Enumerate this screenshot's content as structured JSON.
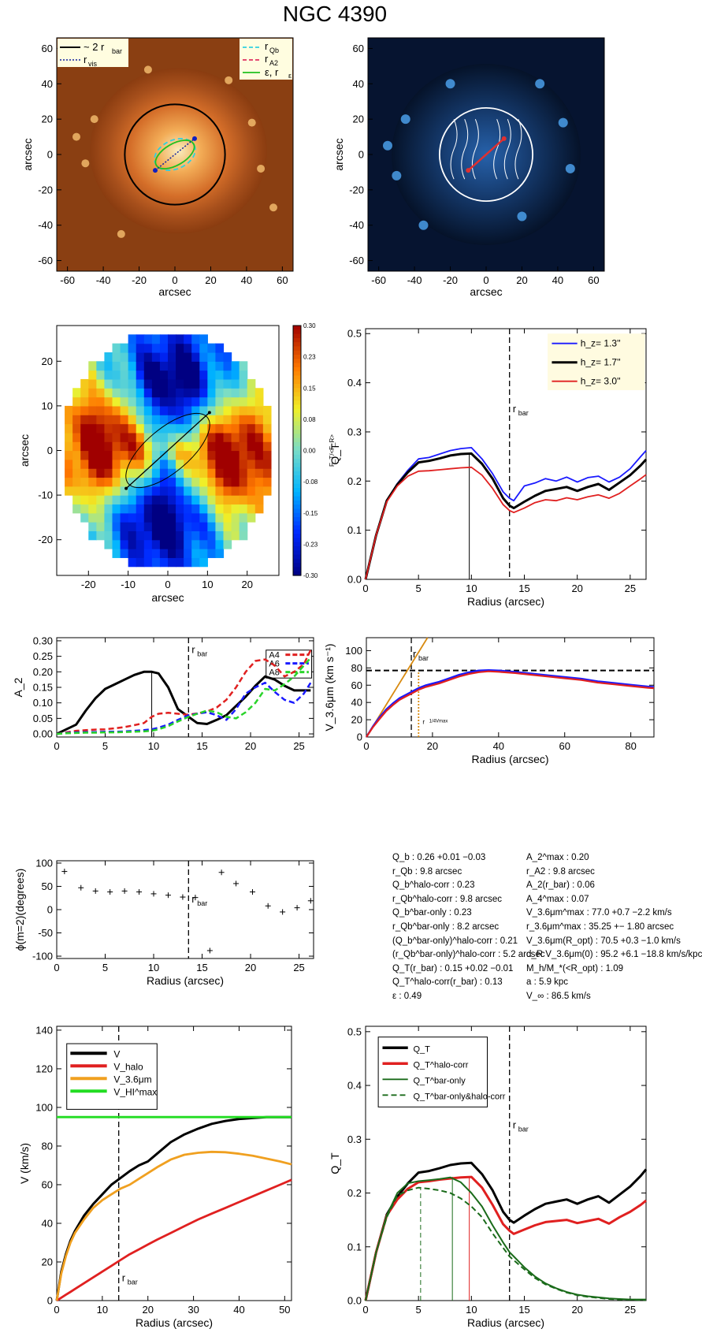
{
  "title": "NGC 4390",
  "images": {
    "optical": {
      "ticks": [
        "-60",
        "-40",
        "-20",
        "0",
        "20",
        "40",
        "60"
      ],
      "xlabel": "arcsec",
      "ylabel": "arcsec",
      "legend_left": [
        "~ 2 r",
        "bar",
        "r",
        "vis"
      ],
      "legend_right": [
        "r",
        "Qb",
        "r",
        "A2",
        "ε, r",
        "ε"
      ]
    },
    "residual": {
      "ticks": [
        "-60",
        "-40",
        "-20",
        "0",
        "20",
        "40",
        "60"
      ],
      "xlabel": "arcsec",
      "ylabel": "arcsec"
    }
  },
  "torque_map": {
    "ticks": [
      "-20",
      "-10",
      "0",
      "10",
      "20"
    ],
    "xlabel": "arcsec",
    "ylabel": "arcsec",
    "colorbar_ticks": [
      "0.30",
      "0.23",
      "0.15",
      "0.08",
      "0.00",
      "-0.08",
      "-0.15",
      "-0.23",
      "-0.30"
    ],
    "colorbar_label": "F_T/<F_R>"
  },
  "info_left": [
    "Q_b :  0.26 +0.01 −0.03",
    "r_Qb :   9.8  arcsec",
    "Q_b^halo-corr :  0.23",
    "r_Qb^halo-corr :  9.8 arcsec",
    "Q_b^bar-only :  0.23",
    "r_Qb^bar-only :  8.2 arcsec",
    "(Q_b^bar-only)^halo-corr :  0.21",
    "(r_Qb^bar-only)^halo-corr :  5.2 arcsec",
    "Q_T(r_bar) :  0.15 +0.02 −0.01",
    "Q_T^halo-corr(r_bar) :  0.13",
    "ε :  0.49"
  ],
  "info_right": [
    "A_2^max :  0.20",
    "r_A2 :   9.8 arcsec",
    "A_2(r_bar) :  0.06",
    "A_4^max :  0.07",
    "V_3.6μm^max :  77.0 +0.7 −2.2 km/s",
    "r_3.6μm^max :  35.25 +− 1.80 arcsec",
    "V_3.6μm(R_opt) :  70.5 +0.3 −1.0 km/s",
    "d_R V_3.6μm(0) :  95.2 +6.1 −18.8 km/s/kpc",
    "M_h/M_*(<R_opt) :  1.09",
    "a :   5.9 kpc",
    "V_∞ :  86.5 km/s"
  ],
  "chart_data": [
    {
      "id": "qt-hz",
      "type": "line",
      "xlabel": "Radius (arcsec)",
      "ylabel": "Q_T",
      "xlim": [
        0,
        26.5
      ],
      "ylim": [
        0,
        0.51
      ],
      "xticks": [
        0,
        5,
        10,
        15,
        20,
        25
      ],
      "yticks": [
        0,
        0.1,
        0.2,
        0.3,
        0.4,
        0.5
      ],
      "rbar": 13.6,
      "rqb": 9.8,
      "x": [
        0,
        1,
        2,
        3,
        4,
        5,
        6,
        7,
        8,
        9,
        10,
        11,
        12,
        13,
        13.6,
        14,
        15,
        16,
        17,
        18,
        19,
        20,
        21,
        22,
        23,
        24,
        25,
        26,
        26.5
      ],
      "series": [
        {
          "name": "h_z=  1.3''",
          "color": "#1a1aff",
          "values": [
            0,
            0.09,
            0.16,
            0.195,
            0.222,
            0.245,
            0.248,
            0.255,
            0.262,
            0.266,
            0.268,
            0.245,
            0.215,
            0.178,
            0.165,
            0.16,
            0.19,
            0.196,
            0.205,
            0.2,
            0.208,
            0.198,
            0.207,
            0.21,
            0.198,
            0.208,
            0.225,
            0.25,
            0.262
          ]
        },
        {
          "name": "h_z=  1.7''",
          "color": "#000000",
          "values": [
            0,
            0.09,
            0.16,
            0.193,
            0.218,
            0.238,
            0.241,
            0.246,
            0.252,
            0.255,
            0.256,
            0.235,
            0.205,
            0.165,
            0.15,
            0.145,
            0.158,
            0.17,
            0.18,
            0.184,
            0.188,
            0.18,
            0.188,
            0.194,
            0.182,
            0.197,
            0.212,
            0.232,
            0.244
          ]
        },
        {
          "name": "h_z=  3.0''",
          "color": "#e02020",
          "values": [
            0,
            0.09,
            0.158,
            0.19,
            0.21,
            0.22,
            0.221,
            0.223,
            0.225,
            0.227,
            0.228,
            0.212,
            0.185,
            0.152,
            0.14,
            0.136,
            0.145,
            0.156,
            0.162,
            0.16,
            0.166,
            0.162,
            0.168,
            0.172,
            0.165,
            0.175,
            0.19,
            0.205,
            0.213
          ]
        }
      ],
      "labels": {
        "rbar": "r_bar"
      }
    },
    {
      "id": "a2",
      "type": "line",
      "xlabel": "",
      "ylabel": "A_2",
      "xlim": [
        0,
        26.5
      ],
      "ylim": [
        -0.01,
        0.31
      ],
      "xticks": [
        0,
        5,
        10,
        15,
        20,
        25
      ],
      "yticks": [
        0,
        0.05,
        0.1,
        0.15,
        0.2,
        0.25,
        0.3
      ],
      "ytick_labels": [
        "0.00",
        "0.05",
        "0.10",
        "0.15",
        "0.20",
        "0.25",
        "0.30"
      ],
      "rbar": 13.6,
      "ra2": 9.8,
      "x": [
        0,
        1,
        2,
        3,
        4,
        5,
        6,
        7,
        8,
        9,
        9.8,
        10.5,
        11.5,
        12.5,
        13.6,
        14.5,
        15.5,
        16.5,
        17.5,
        18.5,
        19.5,
        20.5,
        21.5,
        22.5,
        23.5,
        24.5,
        25.5,
        26.2
      ],
      "series": [
        {
          "name": "A_2",
          "color": "#000000",
          "dash": "",
          "values": [
            0,
            0.015,
            0.03,
            0.075,
            0.115,
            0.145,
            0.16,
            0.175,
            0.19,
            0.2,
            0.2,
            0.195,
            0.15,
            0.08,
            0.055,
            0.035,
            0.032,
            0.045,
            0.06,
            0.09,
            0.12,
            0.155,
            0.185,
            0.175,
            0.155,
            0.14,
            0.14,
            0.14
          ]
        },
        {
          "name": "A_4",
          "color": "#e02020",
          "dash": "7,4",
          "values": [
            0,
            0.005,
            0.01,
            0.012,
            0.014,
            0.015,
            0.018,
            0.022,
            0.028,
            0.035,
            0.055,
            0.065,
            0.068,
            0.065,
            0.062,
            0.066,
            0.072,
            0.085,
            0.11,
            0.15,
            0.2,
            0.235,
            0.24,
            0.22,
            0.185,
            0.2,
            0.225,
            0.27
          ]
        },
        {
          "name": "A_6",
          "color": "#1a1aff",
          "dash": "7,4",
          "values": [
            0,
            0.003,
            0.005,
            0.006,
            0.006,
            0.007,
            0.007,
            0.008,
            0.01,
            0.012,
            0.015,
            0.02,
            0.03,
            0.045,
            0.06,
            0.065,
            0.07,
            0.06,
            0.045,
            0.08,
            0.13,
            0.15,
            0.165,
            0.135,
            0.11,
            0.1,
            0.13,
            0.165
          ]
        },
        {
          "name": "A_8",
          "color": "#2ad42a",
          "dash": "7,4",
          "values": [
            0,
            0.002,
            0.003,
            0.004,
            0.004,
            0.005,
            0.005,
            0.006,
            0.007,
            0.008,
            0.01,
            0.015,
            0.025,
            0.04,
            0.055,
            0.065,
            0.075,
            0.07,
            0.055,
            0.05,
            0.07,
            0.1,
            0.145,
            0.14,
            0.16,
            0.185,
            0.22,
            0.245
          ]
        }
      ],
      "labels": {
        "rbar": "r_bar"
      }
    },
    {
      "id": "v36",
      "type": "line",
      "xlabel": "Radius (arcsec)",
      "ylabel": "V_3.6μm (km s⁻¹)",
      "xlim": [
        0,
        87
      ],
      "ylim": [
        0,
        115
      ],
      "xticks": [
        0,
        20,
        40,
        60,
        80
      ],
      "yticks": [
        0,
        20,
        40,
        60,
        80,
        100
      ],
      "rbar": 13.6,
      "rmax_small": 15.8,
      "vflat": 77,
      "x": [
        0,
        2,
        4,
        6,
        8,
        10,
        12,
        14,
        16,
        18,
        20,
        22,
        25,
        28,
        31,
        34,
        37,
        40,
        45,
        50,
        55,
        60,
        65,
        70,
        75,
        80,
        85,
        87
      ],
      "series": [
        {
          "name": "black",
          "color": "#000000",
          "values": [
            0,
            12,
            22,
            31,
            38,
            44,
            48,
            52,
            56,
            59,
            61,
            63,
            67,
            71,
            74,
            76,
            77,
            76.5,
            75,
            73,
            71,
            69,
            67,
            64,
            62,
            60,
            58,
            57.5
          ]
        },
        {
          "name": "blue",
          "color": "#1a1aff",
          "values": [
            0,
            12.5,
            23,
            32,
            39,
            45,
            49,
            53,
            57,
            60,
            62,
            64,
            68,
            72,
            75,
            77,
            77.5,
            77,
            75.5,
            73.5,
            71.5,
            69.5,
            67.5,
            64.5,
            62.5,
            60.5,
            58.5,
            58
          ]
        },
        {
          "name": "red",
          "color": "#e02020",
          "values": [
            0,
            11.5,
            21,
            30,
            37,
            43,
            47,
            51,
            55,
            58,
            60,
            62,
            66,
            70,
            73,
            75,
            76,
            75.5,
            74,
            72,
            70,
            68,
            66,
            63,
            61,
            59,
            57,
            56.5
          ]
        }
      ],
      "slope_line": {
        "color": "#d88a10",
        "x": [
          0,
          18.5
        ],
        "y": [
          0,
          115
        ]
      },
      "labels": {
        "rbar": "r_bar",
        "rmax": "r^{1/4Vmax}_{max}"
      }
    },
    {
      "id": "phase",
      "type": "scatter",
      "xlabel": "Radius (arcsec)",
      "ylabel": "ϕ(m=2)(degrees)",
      "xlim": [
        0,
        26.5
      ],
      "ylim": [
        -105,
        105
      ],
      "xticks": [
        0,
        5,
        10,
        15,
        20,
        25
      ],
      "yticks": [
        -100,
        -50,
        0,
        50,
        100
      ],
      "rbar": 13.6,
      "points": [
        [
          0.8,
          82
        ],
        [
          2.5,
          47
        ],
        [
          4,
          40
        ],
        [
          5.5,
          38
        ],
        [
          7,
          40
        ],
        [
          8.5,
          38
        ],
        [
          10,
          34
        ],
        [
          11.5,
          31
        ],
        [
          13,
          27
        ],
        [
          14.3,
          26
        ],
        [
          15.8,
          -88
        ],
        [
          17,
          80
        ],
        [
          18.5,
          56
        ],
        [
          20.2,
          38
        ],
        [
          21.8,
          8
        ],
        [
          23.3,
          -5
        ],
        [
          24.8,
          4
        ],
        [
          26.2,
          19
        ]
      ],
      "labels": {
        "rbar": "r_bar"
      }
    },
    {
      "id": "vcurves",
      "type": "line",
      "xlabel": "Radius (arcsec)",
      "ylabel": "V (km/s)",
      "xlim": [
        0,
        51.5
      ],
      "ylim": [
        0,
        142
      ],
      "xticks": [
        0,
        10,
        20,
        30,
        40,
        50
      ],
      "yticks": [
        0,
        20,
        40,
        60,
        80,
        100,
        120,
        140
      ],
      "rbar": 13.6,
      "x": [
        0,
        1,
        2,
        3,
        4,
        6,
        8,
        10,
        12,
        14,
        16,
        18,
        20,
        22,
        25,
        28,
        31,
        34,
        37,
        40,
        43,
        46,
        49,
        51.5
      ],
      "series": [
        {
          "name": "V",
          "color": "#000000",
          "values": [
            0,
            15,
            24,
            31,
            36,
            44,
            50,
            55,
            60,
            63.5,
            67,
            70,
            72,
            76,
            82,
            86,
            89,
            91.5,
            93,
            94,
            94.5,
            95,
            95,
            95
          ]
        },
        {
          "name": "V_halo",
          "color": "#e02020",
          "values": [
            0,
            1.5,
            3,
            4.5,
            6,
            9,
            12,
            15,
            18,
            21,
            24,
            26.5,
            29,
            31.5,
            35,
            38.5,
            42,
            45,
            48,
            51,
            54,
            57,
            60,
            62.5
          ]
        },
        {
          "name": "V_3.6μm",
          "color": "#f0a020",
          "values": [
            0,
            14,
            23,
            30,
            35,
            42,
            48,
            52,
            55,
            58,
            60,
            63,
            66,
            69,
            73,
            75.5,
            76.5,
            77,
            76.8,
            76,
            75,
            73.5,
            72,
            70.5
          ]
        },
        {
          "name": "V_HI^max",
          "color": "#22dd22",
          "values": [
            95,
            95,
            95,
            95,
            95,
            95,
            95,
            95,
            95,
            95,
            95,
            95,
            95,
            95,
            95,
            95,
            95,
            95,
            95,
            95,
            95,
            95,
            95,
            95
          ]
        }
      ],
      "labels": {
        "rbar": "r_bar"
      }
    },
    {
      "id": "qt-corr",
      "type": "line",
      "xlabel": "Radius (arcsec)",
      "ylabel": "Q_T",
      "xlim": [
        0,
        26.5
      ],
      "ylim": [
        0,
        0.51
      ],
      "xticks": [
        0,
        5,
        10,
        15,
        20,
        25
      ],
      "yticks": [
        0,
        0.1,
        0.2,
        0.3,
        0.4,
        0.5
      ],
      "rbar": 13.6,
      "vlines": [
        {
          "x": 5.2,
          "y": 0.21,
          "color": "#1a6b1a",
          "dash": "6,4"
        },
        {
          "x": 8.2,
          "y": 0.23,
          "color": "#1a6b1a",
          "dash": ""
        },
        {
          "x": 9.8,
          "y": 0.23,
          "color": "#e02020",
          "dash": ""
        }
      ],
      "x": [
        0,
        1,
        2,
        3,
        4,
        5,
        6,
        7,
        8,
        9,
        10,
        11,
        12,
        13,
        13.6,
        14,
        15,
        16,
        17,
        18,
        19,
        20,
        21,
        22,
        23,
        24,
        25,
        26,
        26.5
      ],
      "series": [
        {
          "name": "Q_T",
          "color": "#000000",
          "dash": "",
          "values": [
            0,
            0.09,
            0.16,
            0.193,
            0.218,
            0.238,
            0.241,
            0.246,
            0.252,
            0.255,
            0.256,
            0.235,
            0.205,
            0.165,
            0.15,
            0.145,
            0.158,
            0.17,
            0.18,
            0.184,
            0.188,
            0.18,
            0.188,
            0.194,
            0.182,
            0.197,
            0.212,
            0.232,
            0.244
          ]
        },
        {
          "name": "Q_T^halo-corr",
          "color": "#e02020",
          "dash": "",
          "values": [
            0,
            0.09,
            0.158,
            0.188,
            0.208,
            0.22,
            0.222,
            0.225,
            0.227,
            0.229,
            0.23,
            0.21,
            0.178,
            0.142,
            0.13,
            0.124,
            0.132,
            0.14,
            0.146,
            0.148,
            0.15,
            0.144,
            0.148,
            0.152,
            0.143,
            0.155,
            0.165,
            0.178,
            0.186
          ]
        },
        {
          "name": "Q_T^bar-only",
          "color": "#1a6b1a",
          "dash": "",
          "values": [
            0,
            0.09,
            0.158,
            0.2,
            0.218,
            0.222,
            0.224,
            0.226,
            0.229,
            0.22,
            0.2,
            0.175,
            0.14,
            0.108,
            0.09,
            0.082,
            0.062,
            0.045,
            0.032,
            0.023,
            0.016,
            0.011,
            0.008,
            0.006,
            0.004,
            0.003,
            0.002,
            0.002,
            0.002
          ]
        },
        {
          "name": "Q_T^bar-only&halo-corr",
          "color": "#1a6b1a",
          "dash": "7,4",
          "values": [
            0,
            0.09,
            0.155,
            0.195,
            0.205,
            0.21,
            0.208,
            0.205,
            0.2,
            0.19,
            0.175,
            0.155,
            0.125,
            0.098,
            0.082,
            0.075,
            0.058,
            0.042,
            0.03,
            0.022,
            0.015,
            0.01,
            0.007,
            0.005,
            0.003,
            0.002,
            0.002,
            0.001,
            0.001
          ]
        }
      ],
      "labels": {
        "rbar": "r_bar"
      }
    }
  ]
}
